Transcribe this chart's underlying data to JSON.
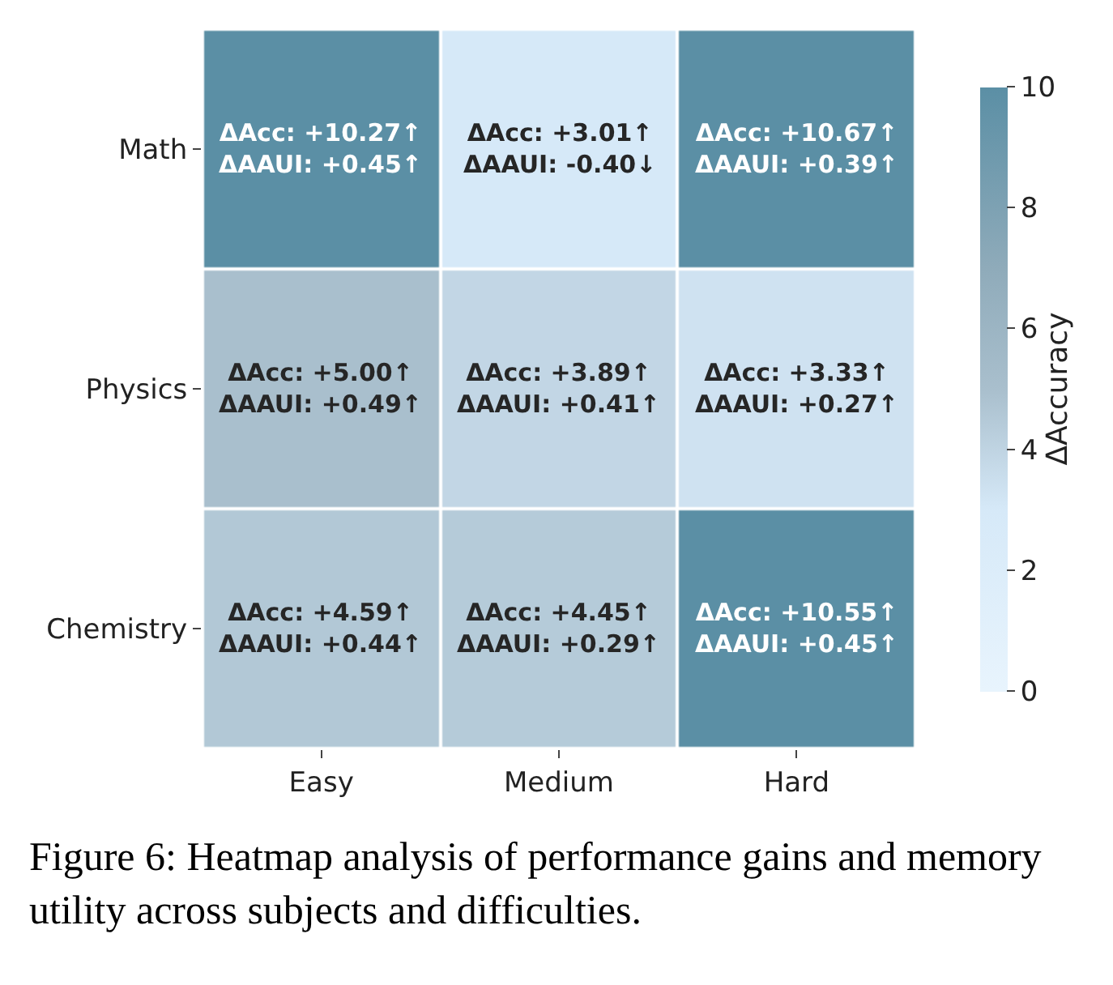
{
  "chart_data": {
    "type": "heatmap",
    "categories": [
      "Easy",
      "Medium",
      "Hard"
    ],
    "y_categories": [
      "Math",
      "Physics",
      "Chemistry"
    ],
    "cells": [
      [
        10.27,
        3.01,
        10.67
      ],
      [
        5.0,
        3.89,
        3.33
      ],
      [
        4.59,
        4.45,
        10.55
      ]
    ],
    "cell_labels": [
      [
        "ΔAcc: +10.27↑\nΔAAUI: +0.45↑",
        "ΔAcc: +3.01↑\nΔAAUI: -0.40↓",
        "ΔAcc: +10.67↑\nΔAAUI: +0.39↑"
      ],
      [
        "ΔAcc: +5.00↑\nΔAAUI: +0.49↑",
        "ΔAcc: +3.89↑\nΔAAUI: +0.41↑",
        "ΔAcc: +3.33↑\nΔAAUI: +0.27↑"
      ],
      [
        "ΔAcc: +4.59↑\nΔAAUI: +0.44↑",
        "ΔAcc: +4.45↑\nΔAAUI: +0.29↑",
        "ΔAcc: +10.55↑\nΔAAUI: +0.45↑"
      ]
    ],
    "clabel": "ΔAccuracy",
    "clim": [
      0,
      10
    ],
    "cticks": [
      0,
      2,
      4,
      6,
      8,
      10
    ],
    "annotations": [
      "Figure 6: Heatmap analysis of performance gains and memory utility across subjects and difficulties."
    ]
  }
}
